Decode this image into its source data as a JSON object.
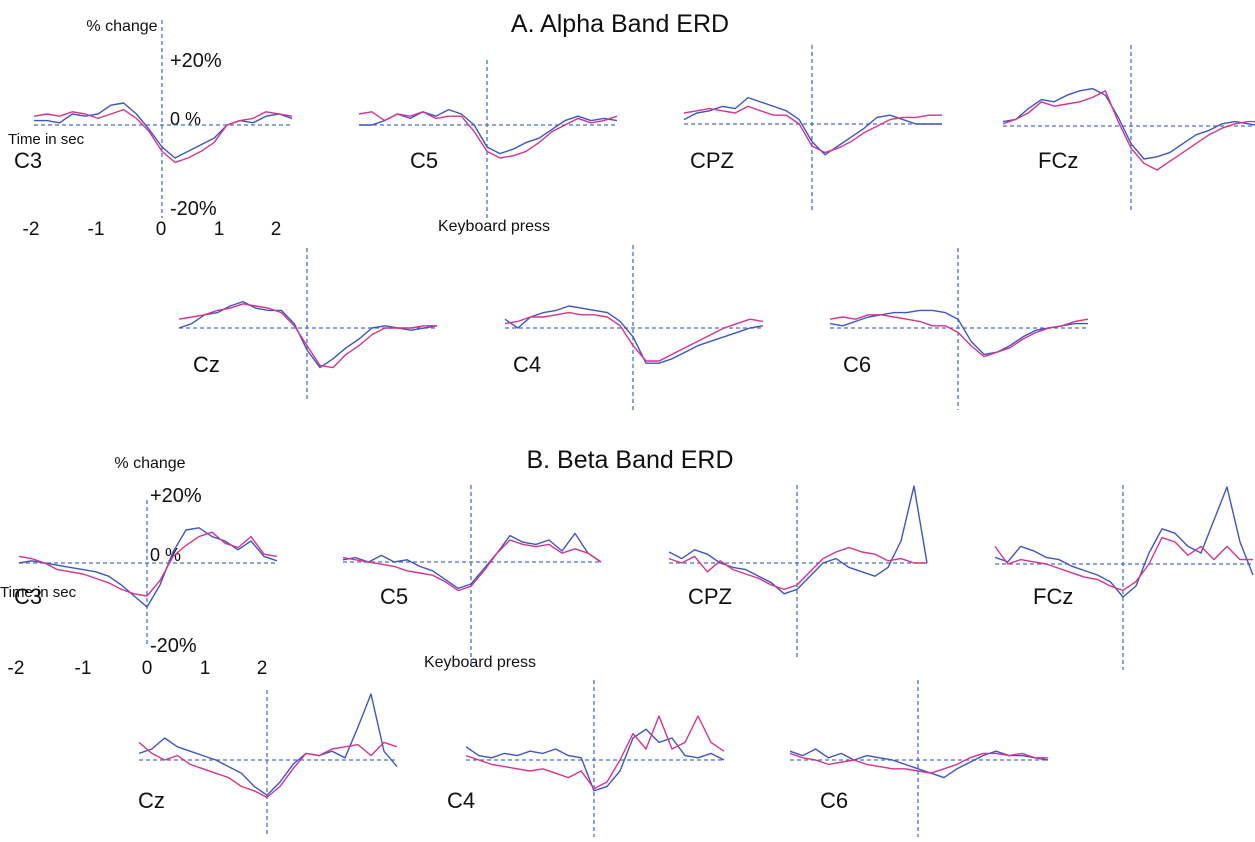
{
  "figure": {
    "panel_a_title": "A. Alpha Band ERD",
    "panel_b_title": "B. Beta Band ERD",
    "pct_label": "% change",
    "plus_label": "+20%",
    "zero_label": "0 %",
    "minus_label": "-20%",
    "time_label": "Time in sec",
    "event_label": "Keyboard press",
    "x_ticks": [
      "-2",
      "-1",
      "0",
      "1",
      "2"
    ]
  },
  "colors": {
    "blue": "#3d56c4",
    "magenta": "#d6338e",
    "axis": "#4a6fd0",
    "text": "#111111"
  },
  "chart_data": [
    {
      "type": "line",
      "title": "A. Alpha Band ERD",
      "xlabel": "Time in sec",
      "ylabel": "% change",
      "xlim": [
        -2,
        2
      ],
      "ylim": [
        -20,
        20
      ],
      "x_ticks": [
        -2,
        -1,
        0,
        1,
        2
      ],
      "y_ticks": [
        "+20%",
        "0 %",
        "-20%"
      ],
      "event_marker": "Keyboard press",
      "x": [
        -2.0,
        -1.8,
        -1.6,
        -1.4,
        -1.2,
        -1.0,
        -0.8,
        -0.6,
        -0.4,
        -0.2,
        0.0,
        0.2,
        0.4,
        0.6,
        0.8,
        1.0,
        1.2,
        1.4,
        1.6,
        1.8,
        2.0
      ],
      "subplots": [
        {
          "label": "C3",
          "series": [
            {
              "color": "blue",
              "values": [
                2,
                2,
                1,
                5,
                4,
                5,
                9,
                10,
                5,
                -2,
                -10,
                -15,
                -12,
                -9,
                -6,
                0,
                2,
                1,
                4,
                5,
                3
              ]
            },
            {
              "color": "magenta",
              "values": [
                4,
                5,
                4,
                6,
                5,
                3,
                5,
                7,
                3,
                -3,
                -12,
                -17,
                -15,
                -12,
                -8,
                0,
                2,
                3,
                6,
                5,
                4
              ]
            }
          ]
        },
        {
          "label": "C5",
          "series": [
            {
              "color": "blue",
              "values": [
                0,
                0,
                2,
                5,
                3,
                6,
                4,
                7,
                5,
                0,
                -10,
                -13,
                -11,
                -8,
                -6,
                -2,
                2,
                4,
                2,
                3,
                2
              ]
            },
            {
              "color": "magenta",
              "values": [
                5,
                6,
                2,
                5,
                4,
                6,
                3,
                4,
                4,
                -3,
                -12,
                -15,
                -14,
                -12,
                -8,
                -3,
                0,
                3,
                1,
                2,
                4
              ]
            }
          ]
        },
        {
          "label": "CPZ",
          "series": [
            {
              "color": "blue",
              "values": [
                2,
                5,
                6,
                8,
                7,
                12,
                10,
                8,
                6,
                2,
                -8,
                -14,
                -10,
                -6,
                -2,
                3,
                4,
                2,
                0,
                0,
                0
              ]
            },
            {
              "color": "magenta",
              "values": [
                5,
                6,
                7,
                6,
                5,
                8,
                6,
                4,
                4,
                0,
                -10,
                -13,
                -11,
                -8,
                -4,
                -1,
                2,
                3,
                3,
                4,
                4
              ]
            }
          ]
        },
        {
          "label": "FCz",
          "series": [
            {
              "color": "blue",
              "values": [
                2,
                3,
                8,
                12,
                11,
                14,
                16,
                17,
                14,
                4,
                -8,
                -15,
                -14,
                -12,
                -8,
                -4,
                -2,
                1,
                2,
                1,
                0
              ]
            },
            {
              "color": "magenta",
              "values": [
                1,
                3,
                6,
                11,
                9,
                10,
                11,
                13,
                16,
                2,
                -10,
                -17,
                -20,
                -16,
                -12,
                -8,
                -4,
                -1,
                1,
                2,
                2
              ]
            }
          ]
        },
        {
          "label": "Cz",
          "series": [
            {
              "color": "blue",
              "values": [
                0,
                2,
                6,
                7,
                10,
                12,
                9,
                8,
                8,
                2,
                -10,
                -18,
                -14,
                -9,
                -5,
                0,
                1,
                0,
                -1,
                0,
                1
              ]
            },
            {
              "color": "magenta",
              "values": [
                4,
                5,
                6,
                8,
                9,
                11,
                10,
                9,
                7,
                1,
                -8,
                -17,
                -18,
                -12,
                -8,
                -3,
                0,
                0,
                0,
                1,
                1
              ]
            }
          ]
        },
        {
          "label": "C4",
          "series": [
            {
              "color": "blue",
              "values": [
                4,
                0,
                5,
                7,
                8,
                10,
                9,
                8,
                7,
                3,
                -4,
                -16,
                -16,
                -14,
                -11,
                -8,
                -6,
                -4,
                -2,
                0,
                1
              ]
            },
            {
              "color": "magenta",
              "values": [
                2,
                3,
                5,
                5,
                6,
                7,
                6,
                6,
                5,
                1,
                -8,
                -15,
                -15,
                -12,
                -9,
                -6,
                -3,
                0,
                2,
                4,
                3
              ]
            }
          ]
        },
        {
          "label": "C6",
          "series": [
            {
              "color": "blue",
              "values": [
                2,
                1,
                3,
                5,
                6,
                7,
                7,
                8,
                8,
                7,
                4,
                -6,
                -12,
                -11,
                -8,
                -4,
                -1,
                0,
                1,
                2,
                2
              ]
            },
            {
              "color": "magenta",
              "values": [
                4,
                5,
                4,
                6,
                6,
                5,
                4,
                3,
                1,
                1,
                -2,
                -8,
                -13,
                -11,
                -9,
                -5,
                -2,
                0,
                1,
                3,
                4
              ]
            }
          ]
        }
      ]
    },
    {
      "type": "line",
      "title": "B. Beta Band ERD",
      "xlabel": "Time in sec",
      "ylabel": "% change",
      "xlim": [
        -2,
        2
      ],
      "ylim": [
        -20,
        20
      ],
      "x_ticks": [
        -2,
        -1,
        0,
        1,
        2
      ],
      "y_ticks": [
        "+20%",
        "0 %",
        "-20%"
      ],
      "event_marker": "Keyboard press",
      "x": [
        -2.0,
        -1.8,
        -1.6,
        -1.4,
        -1.2,
        -1.0,
        -0.8,
        -0.6,
        -0.4,
        -0.2,
        0.0,
        0.2,
        0.4,
        0.6,
        0.8,
        1.0,
        1.2,
        1.4,
        1.6,
        1.8,
        2.0
      ],
      "subplots": [
        {
          "label": "C3",
          "series": [
            {
              "color": "blue",
              "values": [
                0,
                1,
                0,
                -1,
                -2,
                -3,
                -4,
                -6,
                -10,
                -15,
                -20,
                -10,
                5,
                15,
                16,
                12,
                10,
                6,
                10,
                3,
                1
              ]
            },
            {
              "color": "magenta",
              "values": [
                3,
                2,
                0,
                -3,
                -4,
                -5,
                -7,
                -9,
                -12,
                -14,
                -15,
                -8,
                3,
                8,
                12,
                14,
                9,
                7,
                12,
                4,
                3
              ]
            }
          ]
        },
        {
          "label": "C5",
          "series": [
            {
              "color": "blue",
              "values": [
                1,
                2,
                0,
                3,
                0,
                1,
                -2,
                -4,
                -8,
                -12,
                -10,
                -3,
                4,
                12,
                9,
                8,
                10,
                5,
                13,
                4,
                0
              ]
            },
            {
              "color": "magenta",
              "values": [
                2,
                1,
                0,
                -1,
                -2,
                -4,
                -5,
                -6,
                -9,
                -13,
                -11,
                -4,
                4,
                10,
                8,
                7,
                8,
                4,
                6,
                4,
                0
              ]
            }
          ]
        },
        {
          "label": "CPZ",
          "series": [
            {
              "color": "blue",
              "values": [
                5,
                2,
                6,
                4,
                0,
                -2,
                -3,
                -6,
                -9,
                -14,
                -12,
                -6,
                0,
                2,
                -2,
                -4,
                -6,
                -2,
                10,
                35,
                0
              ]
            },
            {
              "color": "magenta",
              "values": [
                2,
                0,
                3,
                -4,
                1,
                -3,
                -5,
                -7,
                -10,
                -12,
                -10,
                -4,
                2,
                5,
                7,
                5,
                4,
                1,
                2,
                0,
                0
              ]
            }
          ]
        },
        {
          "label": "FCz",
          "series": [
            {
              "color": "blue",
              "values": [
                3,
                1,
                8,
                6,
                3,
                2,
                -1,
                -3,
                -5,
                -8,
                -15,
                -10,
                5,
                16,
                14,
                8,
                5,
                20,
                35,
                10,
                -5
              ]
            },
            {
              "color": "magenta",
              "values": [
                8,
                0,
                2,
                1,
                0,
                -2,
                -4,
                -6,
                -7,
                -10,
                -12,
                -8,
                0,
                12,
                10,
                4,
                8,
                2,
                8,
                2,
                2
              ]
            }
          ]
        },
        {
          "label": "Cz",
          "series": [
            {
              "color": "blue",
              "values": [
                3,
                5,
                10,
                6,
                4,
                2,
                0,
                -3,
                -6,
                -12,
                -16,
                -10,
                -2,
                3,
                2,
                4,
                1,
                15,
                30,
                4,
                -3
              ]
            },
            {
              "color": "magenta",
              "values": [
                8,
                3,
                0,
                2,
                -2,
                -4,
                -6,
                -8,
                -12,
                -14,
                -17,
                -12,
                -4,
                3,
                2,
                5,
                6,
                7,
                2,
                8,
                6
              ]
            }
          ]
        },
        {
          "label": "C4",
          "series": [
            {
              "color": "blue",
              "values": [
                6,
                2,
                1,
                3,
                2,
                4,
                3,
                5,
                2,
                1,
                -14,
                -12,
                -5,
                10,
                14,
                8,
                10,
                2,
                1,
                3,
                0
              ]
            },
            {
              "color": "magenta",
              "values": [
                2,
                0,
                -2,
                -3,
                -4,
                -5,
                -4,
                -6,
                -8,
                -5,
                -13,
                -10,
                0,
                12,
                5,
                20,
                5,
                8,
                20,
                8,
                4
              ]
            }
          ]
        },
        {
          "label": "C6",
          "series": [
            {
              "color": "blue",
              "values": [
                4,
                2,
                5,
                1,
                3,
                0,
                2,
                1,
                0,
                -2,
                -4,
                -6,
                -8,
                -4,
                -1,
                2,
                4,
                2,
                2,
                1,
                0
              ]
            },
            {
              "color": "magenta",
              "values": [
                3,
                1,
                0,
                -2,
                -1,
                0,
                -2,
                -3,
                -4,
                -4,
                -5,
                -6,
                -4,
                -2,
                1,
                3,
                3,
                2,
                3,
                1,
                1
              ]
            }
          ]
        }
      ]
    }
  ]
}
